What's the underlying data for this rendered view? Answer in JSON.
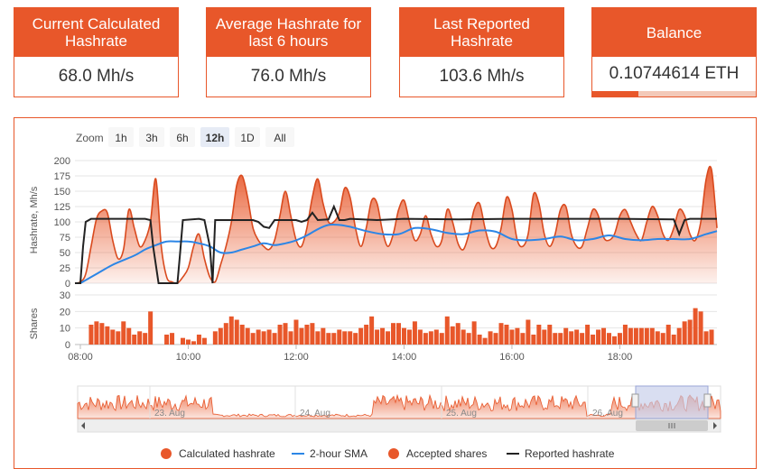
{
  "cards": [
    {
      "title": "Current Calculated Hashrate",
      "value": "68.0 Mh/s"
    },
    {
      "title": "Average Hashrate for last 6 hours",
      "value": "76.0 Mh/s"
    },
    {
      "title": "Last Reported Hashrate",
      "value": "103.6 Mh/s"
    },
    {
      "title": "Balance",
      "value": "0.10744614 ETH",
      "progress": 0.28
    }
  ],
  "zoom": {
    "label": "Zoom",
    "buttons": [
      "1h",
      "3h",
      "6h",
      "12h",
      "1D",
      "All"
    ],
    "selected": "12h"
  },
  "colors": {
    "accent": "#e8572a",
    "sma": "#2c86e6",
    "reported": "#222222",
    "navigator_selection": "#c5cdea"
  },
  "legend": [
    {
      "label": "Calculated hashrate",
      "symbol": "circle",
      "color": "#e8572a"
    },
    {
      "label": "2-hour SMA",
      "symbol": "line",
      "color": "#2c86e6"
    },
    {
      "label": "Accepted shares",
      "symbol": "circle",
      "color": "#e8572a"
    },
    {
      "label": "Reported hashrate",
      "symbol": "line",
      "color": "#222222"
    }
  ],
  "navigator": {
    "date_labels": [
      "23. Aug",
      "24. Aug",
      "25. Aug",
      "26. Aug"
    ]
  },
  "chart_data": {
    "type": "area",
    "x_unit": "hours",
    "x_range": [
      7.9,
      19.8
    ],
    "x_ticks": [
      8,
      10,
      12,
      14,
      16,
      18
    ],
    "x_tick_labels": [
      "08:00",
      "10:00",
      "12:00",
      "14:00",
      "16:00",
      "18:00"
    ],
    "hashrate_axis": {
      "label": "Hashrate, Mh/s",
      "range": [
        0,
        200
      ],
      "ticks": [
        0,
        25,
        50,
        75,
        100,
        125,
        150,
        175,
        200
      ]
    },
    "shares_axis": {
      "label": "Shares",
      "range": [
        0,
        30
      ],
      "ticks": [
        0,
        10,
        20,
        30
      ]
    },
    "series": [
      {
        "name": "Calculated hashrate",
        "kind": "area",
        "x": [
          7.9,
          8.0,
          8.1,
          8.2,
          8.3,
          8.4,
          8.5,
          8.6,
          8.7,
          8.8,
          8.9,
          9.0,
          9.1,
          9.2,
          9.3,
          9.4,
          9.5,
          9.6,
          9.7,
          9.8,
          9.9,
          10.0,
          10.1,
          10.2,
          10.3,
          10.4,
          10.5,
          10.6,
          10.7,
          10.8,
          10.9,
          11.0,
          11.1,
          11.2,
          11.3,
          11.4,
          11.5,
          11.6,
          11.7,
          11.8,
          11.9,
          12.0,
          12.1,
          12.2,
          12.3,
          12.4,
          12.5,
          12.6,
          12.7,
          12.8,
          12.9,
          13.0,
          13.1,
          13.2,
          13.3,
          13.4,
          13.5,
          13.6,
          13.7,
          13.8,
          13.9,
          14.0,
          14.1,
          14.2,
          14.3,
          14.4,
          14.5,
          14.6,
          14.7,
          14.8,
          14.9,
          15.0,
          15.1,
          15.2,
          15.3,
          15.4,
          15.5,
          15.6,
          15.7,
          15.8,
          15.9,
          16.0,
          16.1,
          16.2,
          16.3,
          16.4,
          16.5,
          16.6,
          16.7,
          16.8,
          16.9,
          17.0,
          17.1,
          17.2,
          17.3,
          17.4,
          17.5,
          17.6,
          17.7,
          17.8,
          17.9,
          18.0,
          18.1,
          18.2,
          18.3,
          18.4,
          18.5,
          18.6,
          18.7,
          18.8,
          18.9,
          19.0,
          19.1,
          19.2,
          19.3,
          19.4,
          19.5,
          19.6,
          19.7,
          19.8
        ],
        "values": [
          0,
          2,
          15,
          60,
          105,
          118,
          115,
          70,
          40,
          55,
          120,
          90,
          60,
          70,
          100,
          170,
          60,
          10,
          2,
          0,
          10,
          25,
          60,
          80,
          40,
          10,
          2,
          30,
          60,
          100,
          160,
          175,
          140,
          90,
          70,
          60,
          55,
          70,
          110,
          150,
          110,
          70,
          60,
          90,
          140,
          170,
          130,
          100,
          100,
          115,
          155,
          140,
          90,
          60,
          90,
          135,
          130,
          85,
          60,
          80,
          120,
          135,
          100,
          70,
          80,
          110,
          80,
          60,
          70,
          120,
          100,
          65,
          55,
          80,
          120,
          130,
          90,
          60,
          60,
          90,
          140,
          120,
          70,
          60,
          80,
          145,
          130,
          80,
          60,
          80,
          120,
          125,
          80,
          60,
          60,
          90,
          120,
          110,
          75,
          70,
          80,
          110,
          120,
          100,
          80,
          70,
          100,
          125,
          110,
          80,
          70,
          90,
          120,
          110,
          80,
          70,
          100,
          170,
          185,
          90
        ],
        "color": "#e8572a"
      },
      {
        "name": "2-hour SMA",
        "kind": "line",
        "x": [
          8.0,
          8.3,
          8.6,
          9.0,
          9.2,
          9.4,
          9.6,
          9.8,
          10.0,
          10.2,
          10.4,
          10.6,
          10.8,
          11.0,
          11.2,
          11.4,
          11.6,
          11.8,
          12.0,
          12.2,
          12.4,
          12.6,
          12.8,
          13.0,
          13.3,
          13.6,
          13.9,
          14.2,
          14.5,
          14.8,
          15.1,
          15.4,
          15.7,
          16.0,
          16.3,
          16.6,
          16.9,
          17.2,
          17.5,
          17.8,
          18.1,
          18.4,
          18.7,
          19.0,
          19.3,
          19.6,
          19.8
        ],
        "values": [
          0,
          15,
          30,
          45,
          55,
          62,
          68,
          68,
          68,
          65,
          60,
          50,
          50,
          55,
          60,
          65,
          62,
          65,
          70,
          78,
          88,
          95,
          95,
          92,
          85,
          80,
          80,
          90,
          88,
          82,
          80,
          86,
          84,
          72,
          70,
          72,
          76,
          70,
          72,
          78,
          72,
          70,
          72,
          72,
          72,
          80,
          85
        ],
        "color": "#2c86e6"
      },
      {
        "name": "Reported hashrate",
        "kind": "line",
        "x": [
          7.9,
          8.0,
          8.05,
          8.1,
          8.2,
          9.2,
          9.3,
          9.35,
          9.45,
          9.5,
          9.8,
          9.85,
          9.9,
          10.2,
          10.3,
          10.4,
          10.45,
          10.5,
          11.2,
          11.3,
          11.4,
          11.5,
          11.6,
          12.0,
          12.1,
          12.2,
          12.3,
          12.4,
          12.6,
          12.7,
          12.8,
          12.9,
          13.0,
          13.5,
          14.0,
          15.0,
          16.0,
          17.0,
          18.0,
          19.0,
          19.1,
          19.2,
          19.3,
          19.8
        ],
        "values": [
          0,
          0,
          60,
          100,
          105,
          105,
          103,
          60,
          0,
          0,
          0,
          50,
          103,
          105,
          103,
          60,
          0,
          103,
          103,
          100,
          92,
          90,
          103,
          103,
          100,
          103,
          115,
          103,
          104,
          125,
          103,
          103,
          105,
          103,
          105,
          104,
          105,
          105,
          105,
          104,
          80,
          103,
          105,
          105
        ],
        "color": "#222222"
      },
      {
        "name": "Accepted shares",
        "kind": "bar",
        "x": [
          8.2,
          8.3,
          8.4,
          8.5,
          8.6,
          8.7,
          8.8,
          8.9,
          9.0,
          9.1,
          9.2,
          9.3,
          9.6,
          9.7,
          9.9,
          10.0,
          10.1,
          10.2,
          10.3,
          10.5,
          10.6,
          10.7,
          10.8,
          10.9,
          11.0,
          11.1,
          11.2,
          11.3,
          11.4,
          11.5,
          11.6,
          11.7,
          11.8,
          11.9,
          12.0,
          12.1,
          12.2,
          12.3,
          12.4,
          12.5,
          12.6,
          12.7,
          12.8,
          12.9,
          13.0,
          13.1,
          13.2,
          13.3,
          13.4,
          13.5,
          13.6,
          13.7,
          13.8,
          13.9,
          14.0,
          14.1,
          14.2,
          14.3,
          14.4,
          14.5,
          14.6,
          14.7,
          14.8,
          14.9,
          15.0,
          15.1,
          15.2,
          15.3,
          15.4,
          15.5,
          15.6,
          15.7,
          15.8,
          15.9,
          16.0,
          16.1,
          16.2,
          16.3,
          16.4,
          16.5,
          16.6,
          16.7,
          16.8,
          16.9,
          17.0,
          17.1,
          17.2,
          17.3,
          17.4,
          17.5,
          17.6,
          17.7,
          17.8,
          17.9,
          18.0,
          18.1,
          18.2,
          18.3,
          18.4,
          18.5,
          18.6,
          18.7,
          18.8,
          18.9,
          19.0,
          19.1,
          19.2,
          19.3,
          19.4,
          19.5,
          19.6,
          19.7
        ],
        "values": [
          12,
          14,
          13,
          11,
          9,
          8,
          14,
          10,
          6,
          8,
          7,
          20,
          6,
          7,
          4,
          3,
          2,
          6,
          4,
          8,
          10,
          13,
          17,
          15,
          12,
          10,
          7,
          9,
          8,
          9,
          7,
          12,
          13,
          8,
          15,
          10,
          12,
          13,
          8,
          10,
          7,
          7,
          9,
          8,
          8,
          7,
          10,
          12,
          17,
          9,
          10,
          8,
          13,
          13,
          10,
          9,
          14,
          9,
          7,
          8,
          9,
          7,
          17,
          11,
          13,
          9,
          7,
          14,
          6,
          4,
          8,
          7,
          13,
          12,
          9,
          10,
          7,
          15,
          6,
          12,
          9,
          12,
          7,
          7,
          10,
          8,
          9,
          7,
          12,
          6,
          9,
          10,
          7,
          5,
          7,
          12,
          10,
          10,
          10,
          10,
          10,
          8,
          7,
          12,
          6,
          10,
          14,
          15,
          22,
          20,
          8,
          9
        ]
      }
    ]
  }
}
